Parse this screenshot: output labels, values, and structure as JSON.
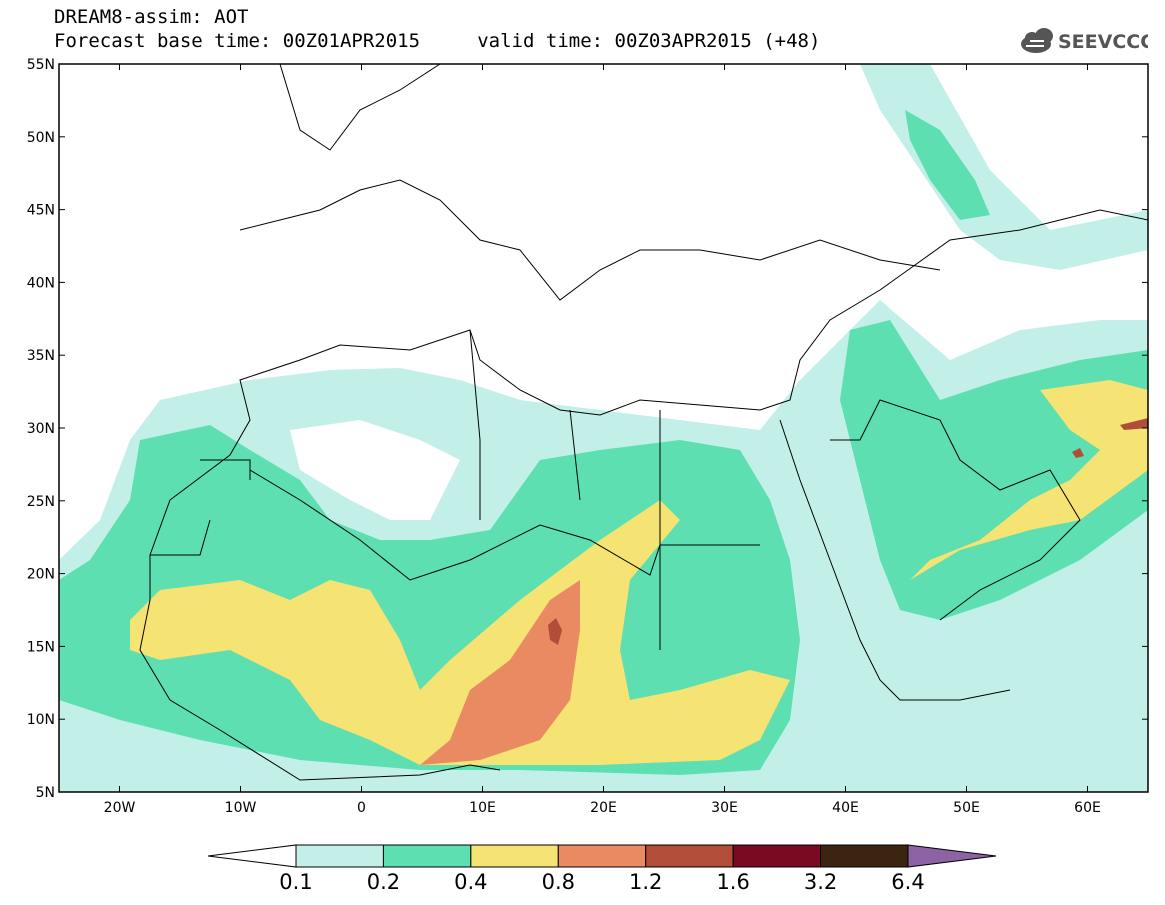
{
  "title": {
    "line1": "DREAM8-assim: AOT",
    "line2": "Forecast base time: 00Z01APR2015     valid time: 00Z03APR2015 (+48)"
  },
  "logo": {
    "text": "SEEVCCC",
    "icon": "cloud-icon"
  },
  "map": {
    "lon_range": [
      -25,
      65
    ],
    "lat_range": [
      5,
      55
    ],
    "lon_ticks": [
      {
        "lon": -20,
        "label": "20W"
      },
      {
        "lon": -10,
        "label": "10W"
      },
      {
        "lon": 0,
        "label": "0"
      },
      {
        "lon": 10,
        "label": "10E"
      },
      {
        "lon": 20,
        "label": "20E"
      },
      {
        "lon": 30,
        "label": "30E"
      },
      {
        "lon": 40,
        "label": "40E"
      },
      {
        "lon": 50,
        "label": "50E"
      },
      {
        "lon": 60,
        "label": "60E"
      }
    ],
    "lat_ticks": [
      {
        "lat": 55,
        "label": "55N"
      },
      {
        "lat": 50,
        "label": "50N"
      },
      {
        "lat": 45,
        "label": "45N"
      },
      {
        "lat": 40,
        "label": "40N"
      },
      {
        "lat": 35,
        "label": "35N"
      },
      {
        "lat": 30,
        "label": "30N"
      },
      {
        "lat": 25,
        "label": "25N"
      },
      {
        "lat": 20,
        "label": "20N"
      },
      {
        "lat": 15,
        "label": "15N"
      },
      {
        "lat": 10,
        "label": "10N"
      },
      {
        "lat": 5,
        "label": "5N"
      }
    ]
  },
  "colorbar": {
    "bins": [
      {
        "color": "#ffffff"
      },
      {
        "color": "#c2f0e8"
      },
      {
        "color": "#5ddfb1"
      },
      {
        "color": "#f5e373"
      },
      {
        "color": "#ea8a63"
      },
      {
        "color": "#b24d3a"
      },
      {
        "color": "#7a0a22"
      },
      {
        "color": "#3b2410"
      },
      {
        "color": "#8e63a6"
      }
    ],
    "labels": [
      "0.1",
      "0.2",
      "0.4",
      "0.8",
      "1.2",
      "1.6",
      "3.2",
      "6.4"
    ]
  },
  "field_colors": {
    "light": "#c2f0e8",
    "green": "#5ddfb1",
    "yellow": "#f5e373",
    "orange": "#ea8a63",
    "red": "#b24d3a",
    "coast": "#000000"
  }
}
